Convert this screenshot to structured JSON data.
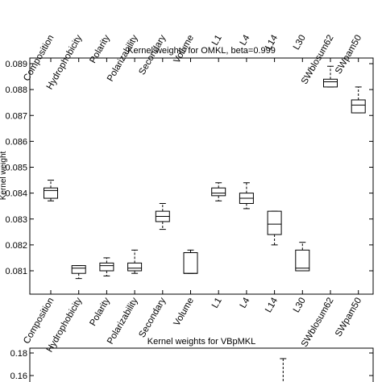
{
  "chart_data": [
    {
      "type": "box",
      "title": "Kernel weights for OMKL, beta=0.999",
      "xlabel": "",
      "ylabel": "Kernel weight",
      "ylim": [
        0.0805,
        0.0893
      ],
      "yticks": [
        0.081,
        0.082,
        0.083,
        0.084,
        0.085,
        0.086,
        0.087,
        0.088,
        0.089
      ],
      "grid": false,
      "categories": [
        "Composition",
        "Hydrophobicity",
        "Polarity",
        "Polarizability",
        "Secondary",
        "Volume",
        "L1",
        "L4",
        "L14",
        "L30",
        "SWblosum62",
        "SWpam50"
      ],
      "boxes": [
        {
          "q1": 0.0838,
          "median": 0.0841,
          "q3": 0.0842,
          "whisker_low": 0.0837,
          "whisker_high": 0.0845
        },
        {
          "q1": 0.0809,
          "median": 0.0811,
          "q3": 0.0812,
          "whisker_low": 0.0807,
          "whisker_high": 0.0812
        },
        {
          "q1": 0.081,
          "median": 0.0812,
          "q3": 0.0813,
          "whisker_low": 0.0808,
          "whisker_high": 0.0815
        },
        {
          "q1": 0.081,
          "median": 0.0811,
          "q3": 0.0813,
          "whisker_low": 0.0809,
          "whisker_high": 0.0818
        },
        {
          "q1": 0.0829,
          "median": 0.0831,
          "q3": 0.0833,
          "whisker_low": 0.0826,
          "whisker_high": 0.0836
        },
        {
          "q1": 0.0809,
          "median": 0.0809,
          "q3": 0.0817,
          "whisker_low": 0.0809,
          "whisker_high": 0.0818
        },
        {
          "q1": 0.0839,
          "median": 0.084,
          "q3": 0.0842,
          "whisker_low": 0.0837,
          "whisker_high": 0.0844
        },
        {
          "q1": 0.0836,
          "median": 0.0838,
          "q3": 0.084,
          "whisker_low": 0.0834,
          "whisker_high": 0.0844
        },
        {
          "q1": 0.0824,
          "median": 0.0828,
          "q3": 0.0833,
          "whisker_low": 0.082,
          "whisker_high": 0.0833
        },
        {
          "q1": 0.081,
          "median": 0.0811,
          "q3": 0.0818,
          "whisker_low": 0.081,
          "whisker_high": 0.0821
        },
        {
          "q1": 0.0881,
          "median": 0.0883,
          "q3": 0.0884,
          "whisker_low": 0.0881,
          "whisker_high": 0.0889
        },
        {
          "q1": 0.0871,
          "median": 0.0874,
          "q3": 0.0876,
          "whisker_low": 0.0871,
          "whisker_high": 0.0881
        }
      ]
    },
    {
      "type": "box",
      "title": "Kernel weights for VBpMKL",
      "xlabel": "",
      "ylabel": "",
      "yticks": [
        0.16,
        0.18
      ],
      "ylim": [
        0.15,
        0.185
      ],
      "grid": false,
      "partial_whisker": {
        "category_index": 9,
        "top": 0.175
      }
    },
    {
      "type": "labels",
      "categories": [
        "Composition",
        "Hydrophobicity",
        "Polarity",
        "Polarizability",
        "Secondary",
        "Volume",
        "L1",
        "L4",
        "L14",
        "L30",
        "SWblosum62",
        "SWpam50"
      ]
    }
  ]
}
